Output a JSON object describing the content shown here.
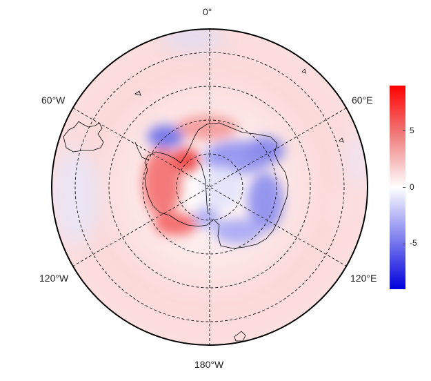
{
  "map": {
    "projection": "south-polar-stereographic",
    "longitude_labels": {
      "top": "0°",
      "upper_left": "60°W",
      "upper_right": "60°E",
      "lower_left": "120°W",
      "lower_right": "120°E",
      "bottom": "180°W"
    },
    "field_description_colors": {
      "positive": "#ff0000",
      "neutral": "#ffffff",
      "negative": "#0000ff"
    }
  },
  "colorbar": {
    "min": -9,
    "max": 9,
    "ticks": [
      "5",
      "0",
      "-5"
    ],
    "tick_values": [
      5,
      0,
      -5
    ],
    "colors": [
      "#0000ff",
      "#ffffff",
      "#ff0000"
    ]
  }
}
